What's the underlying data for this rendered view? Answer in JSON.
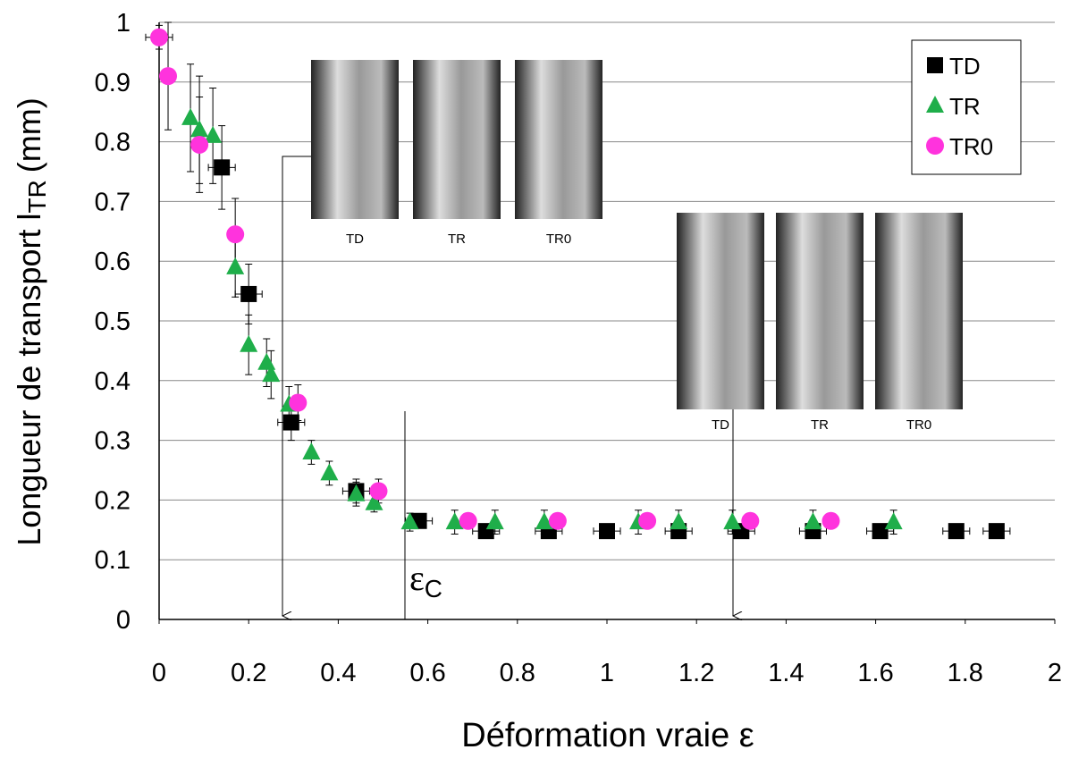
{
  "chart_data": {
    "type": "scatter",
    "xlabel": "Déformation vraie ε",
    "ylabel": "Longueur de transport l",
    "ylabel_sub": "TR",
    "ylabel_unit": "(mm)",
    "annotation": "ε",
    "annotation_sub": "C",
    "xlim": [
      0,
      2
    ],
    "xticks": [
      0,
      0.2,
      0.4,
      0.6,
      0.8,
      1,
      1.2,
      1.4,
      1.6,
      1.8,
      2
    ],
    "ylim": [
      0,
      1
    ],
    "yticks": [
      0,
      0.1,
      0.2,
      0.3,
      0.4,
      0.5,
      0.6,
      0.7,
      0.8,
      0.9,
      1
    ],
    "grid": true,
    "legend": "upper right",
    "insets": [
      {
        "labels": [
          "TD",
          "TR",
          "TR0"
        ]
      },
      {
        "labels": [
          "TD",
          "TR",
          "TR0"
        ]
      }
    ],
    "series": [
      {
        "name": "TD",
        "marker": "square",
        "color": "#000000",
        "x": [
          0.14,
          0.2,
          0.295,
          0.44,
          0.58,
          0.73,
          0.87,
          1.0,
          1.16,
          1.3,
          1.46,
          1.61,
          1.78,
          1.87
        ],
        "values": [
          0.757,
          0.545,
          0.33,
          0.215,
          0.165,
          0.148,
          0.148,
          0.148,
          0.148,
          0.148,
          0.148,
          0.148,
          0.148,
          0.148
        ],
        "yerr": [
          0.07,
          0.05,
          0.03,
          0.02,
          0.01,
          0.01,
          0.01,
          0.01,
          0.01,
          0.01,
          0.01,
          0.01,
          0.01,
          0.01
        ],
        "xerr": [
          0.03,
          0.03,
          0.03,
          0.03,
          0.03,
          0.03,
          0.03,
          0.03,
          0.03,
          0.03,
          0.03,
          0.03,
          0.03,
          0.03
        ]
      },
      {
        "name": "TR",
        "marker": "triangle",
        "color": "#1fae4a",
        "x": [
          0.07,
          0.09,
          0.12,
          0.17,
          0.2,
          0.24,
          0.25,
          0.29,
          0.34,
          0.38,
          0.44,
          0.48,
          0.56,
          0.66,
          0.75,
          0.86,
          1.07,
          1.16,
          1.28,
          1.46,
          1.64
        ],
        "values": [
          0.84,
          0.82,
          0.81,
          0.59,
          0.46,
          0.43,
          0.41,
          0.36,
          0.28,
          0.245,
          0.21,
          0.195,
          0.163,
          0.163,
          0.163,
          0.163,
          0.163,
          0.163,
          0.163,
          0.163,
          0.163
        ],
        "yerr": [
          0.09,
          0.09,
          0.08,
          0.05,
          0.05,
          0.04,
          0.04,
          0.03,
          0.02,
          0.02,
          0.02,
          0.015,
          0.015,
          0.02,
          0.02,
          0.02,
          0.02,
          0.02,
          0.02,
          0.02,
          0.02
        ]
      },
      {
        "name": "TR0",
        "marker": "circle",
        "color": "#ff33dd",
        "x": [
          0,
          0.02,
          0.09,
          0.17,
          0.31,
          0.49,
          0.69,
          0.89,
          1.09,
          1.32,
          1.5
        ],
        "values": [
          0.975,
          0.91,
          0.795,
          0.645,
          0.363,
          0.215,
          0.165,
          0.165,
          0.165,
          0.165,
          0.165
        ],
        "yerr": [
          0.02,
          0.09,
          0.08,
          0.06,
          0.03,
          0.02,
          0.01,
          0.01,
          0.01,
          0.01,
          0.01
        ],
        "xerr": [
          0.03,
          0.01,
          0.01,
          0.01,
          0.01,
          0.01,
          0.01,
          0.01,
          0.01,
          0.01,
          0.01
        ]
      }
    ]
  }
}
